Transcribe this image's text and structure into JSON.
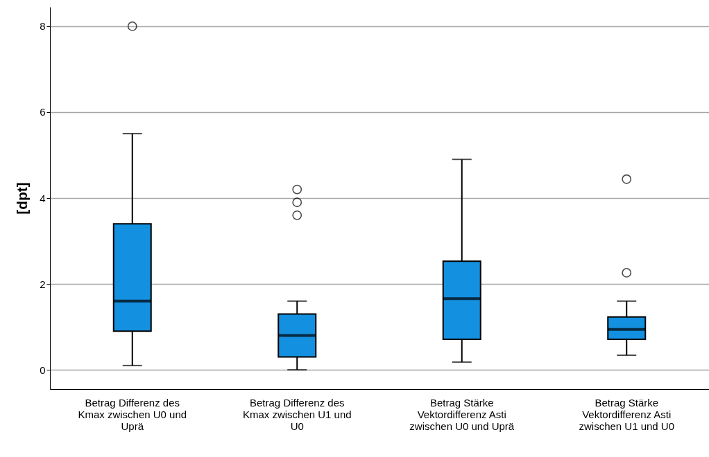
{
  "chart_data": {
    "type": "box",
    "ylabel": "[dpt]",
    "categories": [
      "Betrag Differenz des Kmax zwischen U0 und Uprä",
      "Betrag Differenz des Kmax zwischen U1 und U0",
      "Betrag Stärke Vektordifferenz Asti zwischen U0 und Uprä",
      "Betrag Stärke Vektordifferenz Asti zwischen U1 und U0"
    ],
    "color": "#1490e0",
    "boxes": [
      {
        "low": 0.1,
        "q1": 0.9,
        "median": 1.6,
        "q3": 3.4,
        "high": 5.5,
        "outliers": [
          8
        ]
      },
      {
        "low": 0,
        "q1": 0.3,
        "median": 0.8,
        "q3": 1.3,
        "high": 1.6,
        "outliers": [
          3.6,
          3.9,
          4.2
        ]
      },
      {
        "low": 0.18,
        "q1": 0.71,
        "median": 1.66,
        "q3": 2.53,
        "high": 4.9
      },
      {
        "low": 0.34,
        "q1": 0.71,
        "median": 0.94,
        "q3": 1.23,
        "high": 1.6,
        "outliers": [
          2.26,
          4.44
        ]
      }
    ],
    "ylim": [
      -0.45,
      8.45
    ],
    "yticks": [
      0,
      2,
      4,
      6,
      8
    ],
    "grid": "y"
  }
}
